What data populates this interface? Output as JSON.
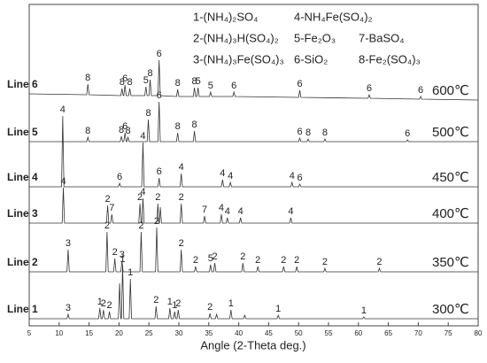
{
  "chart_data": {
    "type": "line",
    "x_label": "Angle (2-Theta deg.)",
    "xlim": [
      5,
      80
    ],
    "xticks": [
      5,
      10,
      15,
      20,
      25,
      30,
      35,
      40,
      45,
      50,
      55,
      60,
      65,
      70,
      75,
      80
    ],
    "ylim": [
      0,
      363
    ],
    "phases": [
      "1-(NH₄)₂SO₄",
      "4-NH₄Fe(SO₄)₂",
      "2-(NH₄)₃H(SO₄)₂",
      "5-Fe₂O₃",
      "7-BaSO₄",
      "3-(NH₄)₃Fe(SO₄)₃",
      "6-SiO₂",
      "8-Fe₂(SO₄)₃"
    ],
    "series": [
      {
        "name": "Line 1",
        "temperature": "300℃",
        "color": "#333333",
        "x": [
          5,
          11.3,
          11.5,
          11.7,
          16.6,
          16.8,
          17.0,
          17.2,
          17.4,
          17.6,
          18.2,
          18.4,
          18.6,
          19.9,
          20.1,
          20.3,
          20.4,
          20.6,
          20.8,
          21.7,
          21.9,
          22.1,
          26.0,
          26.2,
          26.4,
          28.3,
          28.5,
          28.7,
          29.1,
          29.3,
          29.5,
          29.7,
          29.9,
          30.1,
          35.0,
          35.2,
          35.4,
          36.1,
          36.3,
          36.5,
          38.5,
          38.7,
          38.9,
          40.8,
          41.0,
          41.2,
          46.4,
          46.6,
          46.8,
          60.7,
          60.9,
          61.1,
          80
        ],
        "values": [
          8,
          8,
          13,
          8,
          8,
          20,
          8,
          8,
          18,
          8,
          8,
          16,
          8,
          8,
          48,
          8,
          8,
          68,
          8,
          8,
          53,
          8,
          8,
          22,
          8,
          8,
          20,
          8,
          8,
          16,
          8,
          8,
          18,
          8,
          8,
          14,
          8,
          8,
          13,
          8,
          8,
          18,
          8,
          8,
          12,
          8,
          8,
          12,
          8,
          8,
          10,
          8,
          8
        ],
        "peak_labels": [
          {
            "text": "3",
            "x": 11.5
          },
          {
            "text": "1",
            "x": 16.8
          },
          {
            "text": "2",
            "x": 17.4
          },
          {
            "text": "2",
            "x": 18.4
          },
          {
            "text": "1",
            "x": 20.6
          },
          {
            "text": "1",
            "x": 21.9
          },
          {
            "text": "2",
            "x": 26.2
          },
          {
            "text": "1",
            "x": 28.5
          },
          {
            "text": "1",
            "x": 29.3
          },
          {
            "text": "2",
            "x": 29.9
          },
          {
            "text": "2",
            "x": 35.2
          },
          {
            "text": "1",
            "x": 38.7
          },
          {
            "text": "1",
            "x": 46.6
          },
          {
            "text": "1",
            "x": 60.9
          }
        ]
      },
      {
        "name": "Line 2",
        "temperature": "350℃",
        "color": "#333333",
        "x": [
          5,
          11.3,
          11.5,
          11.7,
          17.8,
          18.0,
          18.2,
          19.1,
          19.3,
          19.5,
          20.3,
          20.5,
          20.7,
          23.5,
          23.7,
          23.9,
          26.1,
          26.3,
          26.5,
          30.2,
          30.4,
          30.6,
          32.6,
          32.8,
          33.0,
          35.1,
          35.3,
          35.5,
          35.8,
          36.0,
          36.2,
          40.5,
          40.7,
          40.9,
          43.0,
          43.2,
          43.4,
          47.3,
          47.5,
          47.7,
          49.5,
          49.7,
          49.9,
          54.2,
          54.4,
          54.6,
          63.3,
          63.5,
          63.7,
          80
        ],
        "values": [
          61,
          61,
          86,
          61,
          61,
          106,
          61,
          61,
          76,
          61,
          61,
          73,
          61,
          61,
          106,
          61,
          61,
          111,
          61,
          61,
          86,
          61,
          61,
          67,
          61,
          61,
          69,
          61,
          61,
          71,
          61,
          61,
          71,
          61,
          61,
          67,
          61,
          61,
          67,
          61,
          61,
          67,
          61,
          61,
          65,
          61,
          61,
          65,
          61,
          61
        ],
        "peak_labels": [
          {
            "text": "3",
            "x": 11.5
          },
          {
            "text": "2",
            "x": 18.0
          },
          {
            "text": "2",
            "x": 19.3
          },
          {
            "text": "3",
            "x": 20.5
          },
          {
            "text": "2",
            "x": 23.7
          },
          {
            "text": "2",
            "x": 26.3
          },
          {
            "text": "2",
            "x": 30.4
          },
          {
            "text": "2",
            "x": 32.8
          },
          {
            "text": "5",
            "x": 35.3
          },
          {
            "text": "2",
            "x": 36.0
          },
          {
            "text": "2",
            "x": 40.7
          },
          {
            "text": "2",
            "x": 43.2
          },
          {
            "text": "2",
            "x": 47.5
          },
          {
            "text": "2",
            "x": 49.7
          },
          {
            "text": "2",
            "x": 54.4
          },
          {
            "text": "2",
            "x": 63.5
          }
        ]
      },
      {
        "name": "Line 3",
        "temperature": "400℃",
        "color": "#333333",
        "x": [
          5,
          10.5,
          10.7,
          10.9,
          17.9,
          18.1,
          18.3,
          18.6,
          18.8,
          19.0,
          23.3,
          23.5,
          23.7,
          23.8,
          24.0,
          24.2,
          26.3,
          26.5,
          26.65,
          26.75,
          26.9,
          27.1,
          30.2,
          30.4,
          30.6,
          34.1,
          34.3,
          34.5,
          36.9,
          37.1,
          37.3,
          37.9,
          38.1,
          38.3,
          40.1,
          40.3,
          40.5,
          48.5,
          48.7,
          48.9,
          80
        ],
        "values": [
          116,
          116,
          156,
          116,
          116,
          136,
          116,
          116,
          126,
          116,
          116,
          138,
          116,
          116,
          144,
          116,
          116,
          138,
          116,
          116,
          134,
          116,
          116,
          138,
          116,
          116,
          124,
          116,
          116,
          126,
          116,
          116,
          122,
          116,
          116,
          122,
          116,
          116,
          122,
          116,
          116
        ],
        "peak_labels": [
          {
            "text": "4",
            "x": 10.7
          },
          {
            "text": "2",
            "x": 18.1
          },
          {
            "text": "7",
            "x": 18.8
          },
          {
            "text": "2",
            "x": 23.5
          },
          {
            "text": "4",
            "x": 24.0
          },
          {
            "text": "2",
            "x": 26.5
          },
          {
            "text": "2",
            "x": 30.4
          },
          {
            "text": "7",
            "x": 34.3
          },
          {
            "text": "4",
            "x": 37.1
          },
          {
            "text": "4",
            "x": 38.1
          },
          {
            "text": "4",
            "x": 40.3
          },
          {
            "text": "4",
            "x": 48.7
          }
        ]
      },
      {
        "name": "Line 4",
        "temperature": "450℃",
        "color": "#333333",
        "x": [
          5,
          10.4,
          10.6,
          10.8,
          19.9,
          20.1,
          20.3,
          23.8,
          24.0,
          24.2,
          26.5,
          26.7,
          26.9,
          30.2,
          30.4,
          30.6,
          37.1,
          37.3,
          37.5,
          38.4,
          38.6,
          38.8,
          48.7,
          48.9,
          49.1,
          50.0,
          50.2,
          50.4,
          80
        ],
        "values": [
          157,
          157,
          237,
          157,
          157,
          161,
          157,
          157,
          207,
          157,
          157,
          167,
          157,
          157,
          172,
          157,
          157,
          165,
          157,
          157,
          162,
          157,
          157,
          162,
          157,
          157,
          160,
          157,
          157
        ],
        "peak_labels": [
          {
            "text": "4",
            "x": 10.6
          },
          {
            "text": "6",
            "x": 20.1
          },
          {
            "text": "4",
            "x": 24.0
          },
          {
            "text": "6",
            "x": 26.7
          },
          {
            "text": "4",
            "x": 30.4
          },
          {
            "text": "4",
            "x": 37.3
          },
          {
            "text": "4",
            "x": 38.6
          },
          {
            "text": "4",
            "x": 48.9
          },
          {
            "text": "6",
            "x": 50.2
          }
        ]
      },
      {
        "name": "Line 5",
        "temperature": "500℃",
        "color": "#333333",
        "x": [
          5,
          14.6,
          14.8,
          15.0,
          20.2,
          20.4,
          20.6,
          20.8,
          21.0,
          21.2,
          21.3,
          21.5,
          21.7,
          24.7,
          24.9,
          25.1,
          26.5,
          26.7,
          26.9,
          29.6,
          29.8,
          30.0,
          32.4,
          32.6,
          32.8,
          50.0,
          50.2,
          50.4,
          51.4,
          51.6,
          51.8,
          54.2,
          54.4,
          54.6,
          68.0,
          68.2,
          68.4,
          80
        ],
        "values": [
          208,
          208,
          213,
          208,
          208,
          214,
          208,
          208,
          218,
          208,
          208,
          213,
          208,
          208,
          233,
          208,
          208,
          253,
          208,
          208,
          218,
          208,
          208,
          220,
          208,
          208,
          212,
          208,
          208,
          211,
          208,
          208,
          211,
          208,
          208,
          210,
          208,
          208
        ],
        "peak_labels": [
          {
            "text": "8",
            "x": 14.8
          },
          {
            "text": "8",
            "x": 20.4
          },
          {
            "text": "6",
            "x": 21.0
          },
          {
            "text": "8",
            "x": 21.5
          },
          {
            "text": "8",
            "x": 24.9
          },
          {
            "text": "6",
            "x": 26.7
          },
          {
            "text": "8",
            "x": 29.8
          },
          {
            "text": "8",
            "x": 32.6
          },
          {
            "text": "6",
            "x": 50.2
          },
          {
            "text": "8",
            "x": 51.6
          },
          {
            "text": "8",
            "x": 54.4
          },
          {
            "text": "6",
            "x": 68.2
          }
        ]
      },
      {
        "name": "Line 6",
        "temperature": "600℃",
        "color": "#333333",
        "x": [
          5,
          14.6,
          14.8,
          15.0,
          20.3,
          20.5,
          20.7,
          20.8,
          21.0,
          21.2,
          21.6,
          21.8,
          22.0,
          24.3,
          24.5,
          24.7,
          25.0,
          25.2,
          25.4,
          26.5,
          26.7,
          26.9,
          29.6,
          29.8,
          30.0,
          32.4,
          32.6,
          32.8,
          33.0,
          33.2,
          33.4,
          35.1,
          35.3,
          35.5,
          39.0,
          39.2,
          39.4,
          50.0,
          50.2,
          50.4,
          61.6,
          61.8,
          62.0,
          70.2,
          70.4,
          70.6,
          80
        ],
        "values": [
          262,
          261,
          273,
          261,
          260,
          268,
          260,
          260,
          272,
          260,
          260,
          268,
          260,
          260,
          270,
          260,
          260,
          278,
          260,
          260,
          300,
          260,
          259,
          267,
          259,
          259,
          269,
          259,
          259,
          269,
          259,
          259,
          264,
          259,
          259,
          264,
          259,
          258,
          266,
          258,
          257,
          261,
          257,
          256,
          259,
          256,
          255
        ],
        "peak_labels": [
          {
            "text": "8",
            "x": 14.8
          },
          {
            "text": "8",
            "x": 20.5
          },
          {
            "text": "6",
            "x": 21.0
          },
          {
            "text": "8",
            "x": 21.8
          },
          {
            "text": "5",
            "x": 24.5
          },
          {
            "text": "8",
            "x": 25.2
          },
          {
            "text": "6",
            "x": 26.7
          },
          {
            "text": "8",
            "x": 29.8
          },
          {
            "text": "8",
            "x": 32.6
          },
          {
            "text": "5",
            "x": 33.2
          },
          {
            "text": "5",
            "x": 35.3
          },
          {
            "text": "6",
            "x": 39.2
          },
          {
            "text": "6",
            "x": 50.2
          },
          {
            "text": "6",
            "x": 61.8
          },
          {
            "text": "6",
            "x": 70.4
          }
        ]
      }
    ]
  }
}
